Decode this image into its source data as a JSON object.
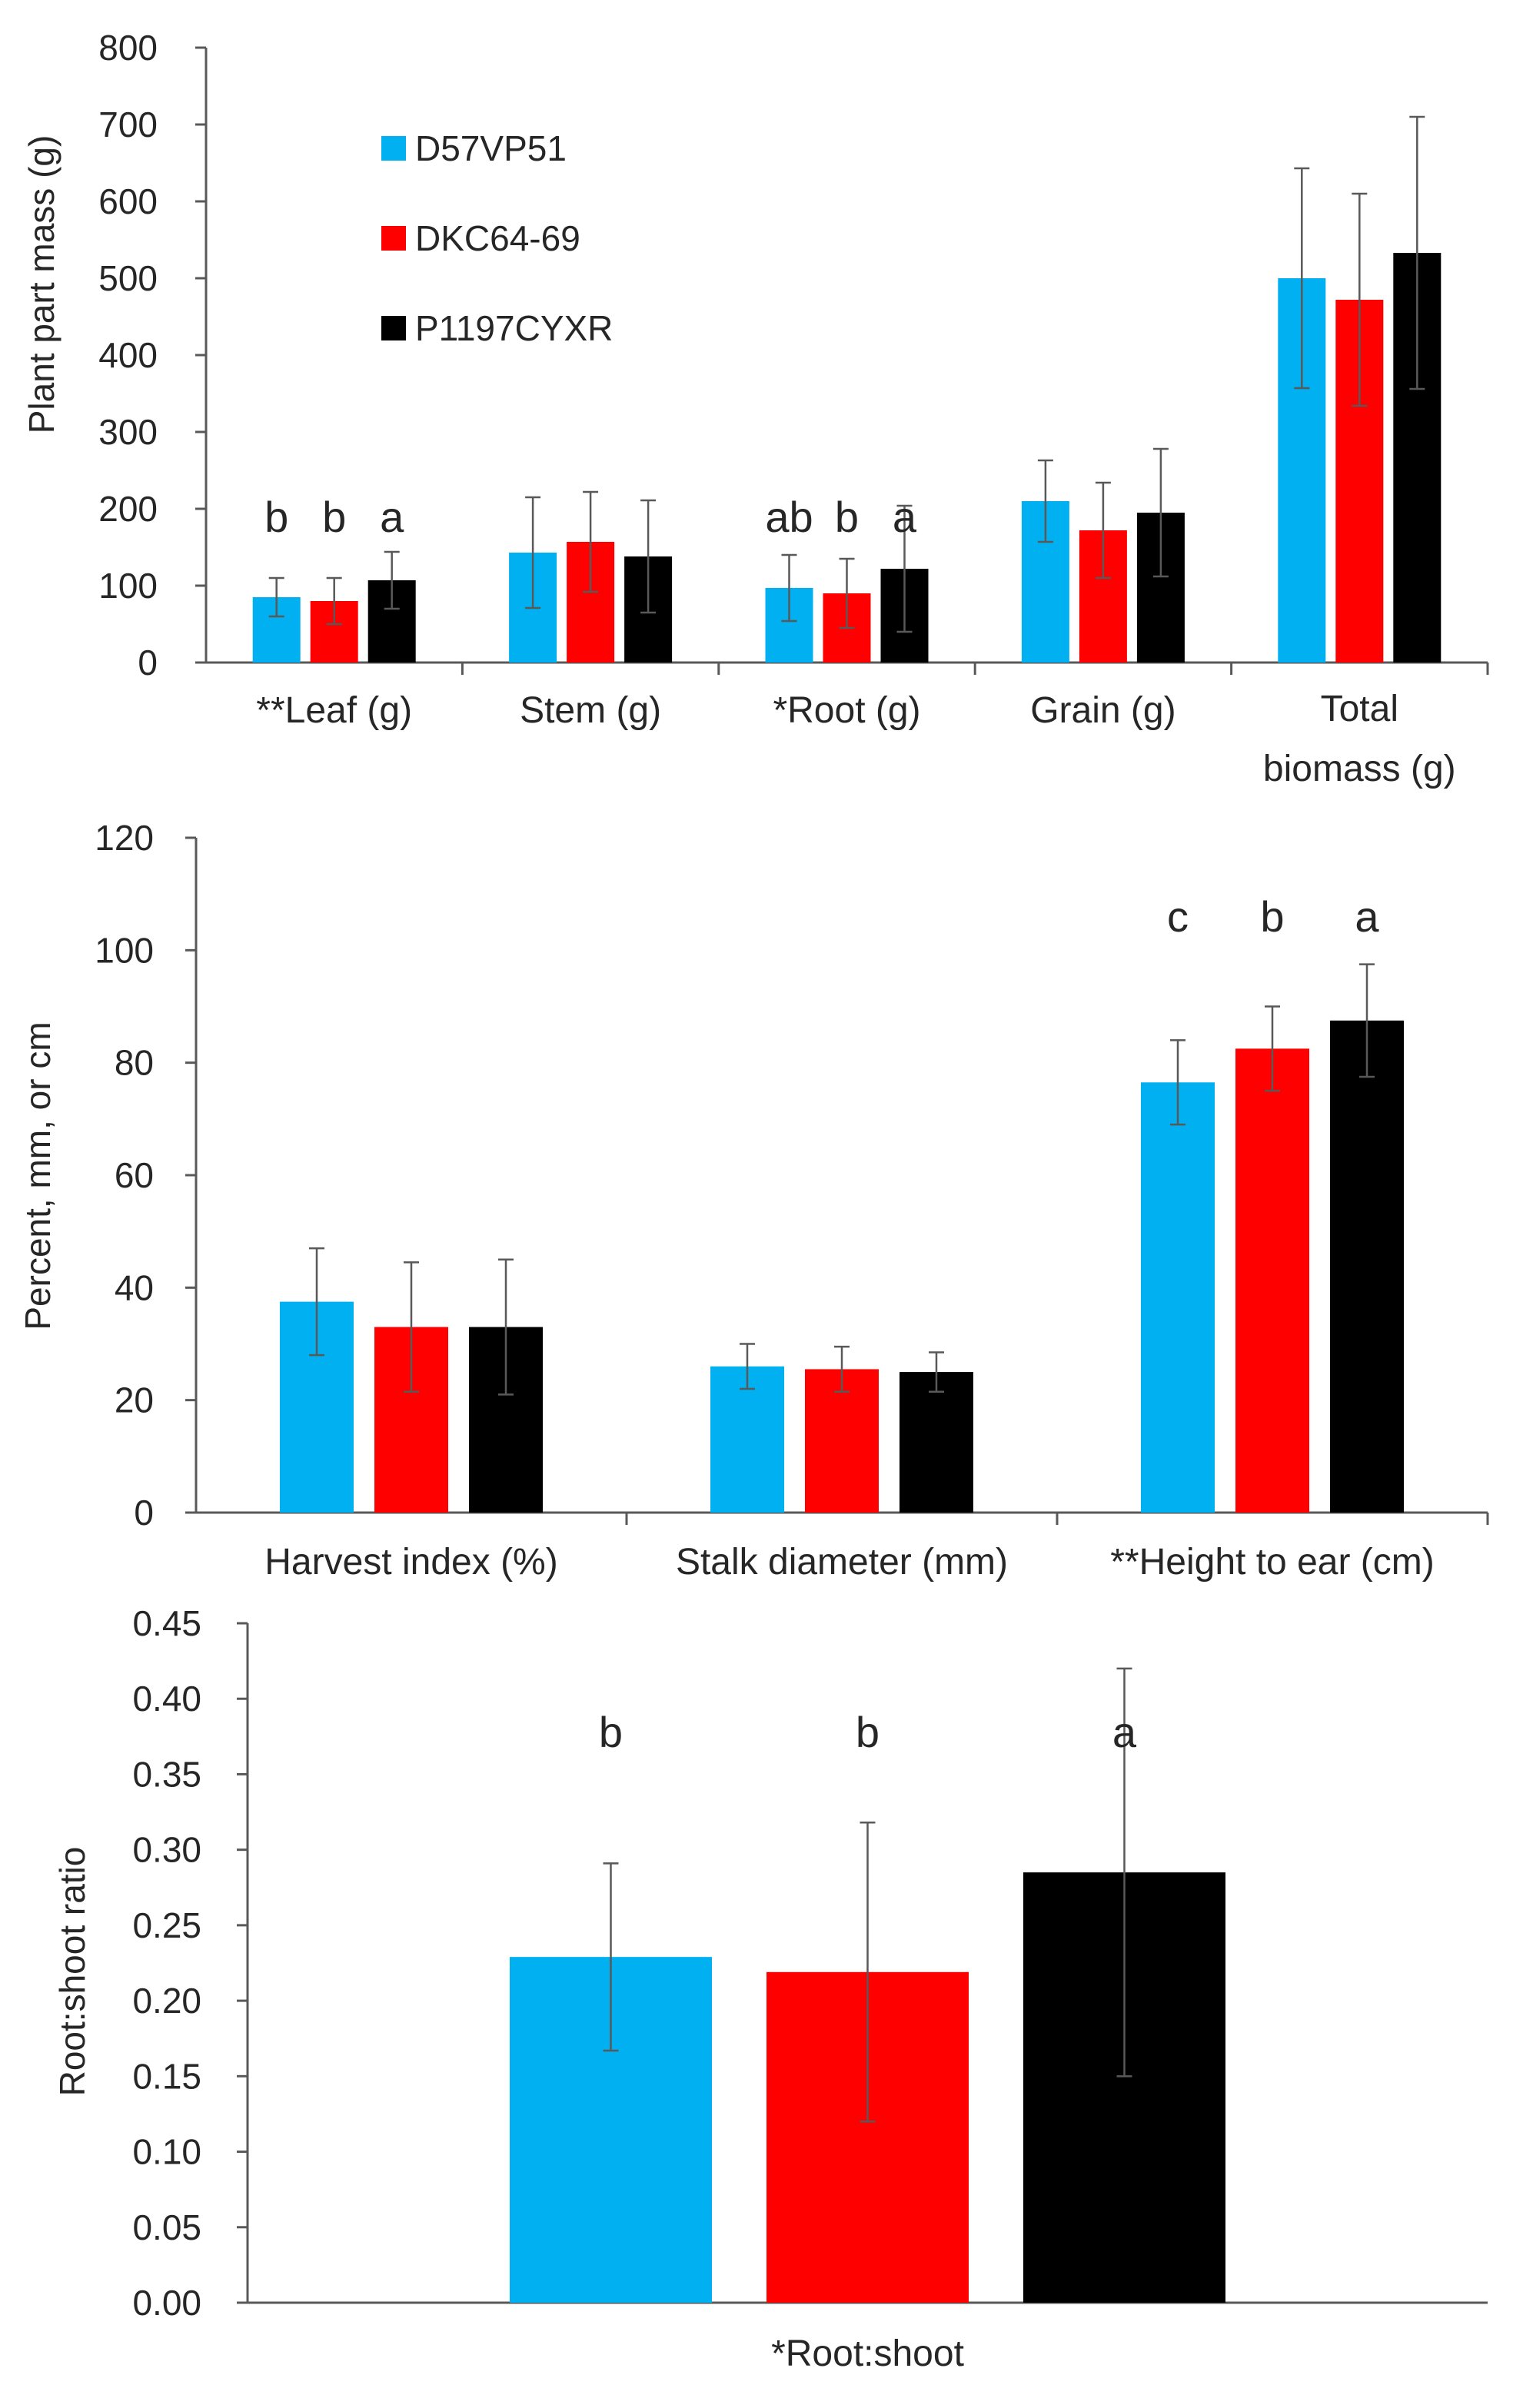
{
  "chart_data": [
    {
      "type": "bar",
      "ylabel": "Plant part mass (g)",
      "ylim": [
        0,
        800
      ],
      "yticks": [
        0,
        100,
        200,
        300,
        400,
        500,
        600,
        700,
        800
      ],
      "categories": [
        "**Leaf (g)",
        "Stem (g)",
        "*Root (g)",
        "Grain (g)",
        "Total biomass (g)"
      ],
      "series": [
        {
          "name": "D57VP51",
          "color": "#00b0f0",
          "values": [
            85,
            143,
            97,
            210,
            500
          ],
          "errors": [
            25,
            72,
            43,
            53,
            143
          ]
        },
        {
          "name": "DKC64-69",
          "color": "#ff0000",
          "values": [
            80,
            157,
            90,
            172,
            472
          ],
          "errors": [
            30,
            65,
            45,
            62,
            138
          ]
        },
        {
          "name": "P1197CYXR",
          "color": "#000000",
          "values": [
            107,
            138,
            122,
            195,
            533
          ],
          "errors": [
            37,
            73,
            82,
            83,
            177
          ]
        }
      ],
      "significance": [
        [
          "b",
          "b",
          "a"
        ],
        [
          "",
          "",
          ""
        ],
        [
          "ab",
          "b",
          "a"
        ],
        [
          "",
          "",
          ""
        ],
        [
          "",
          "",
          ""
        ]
      ],
      "legend": {
        "position": "top-left",
        "entries": [
          "D57VP51",
          "DKC64-69",
          "P1197CYXR"
        ]
      }
    },
    {
      "type": "bar",
      "ylabel": "Percent, mm, or cm",
      "ylim": [
        0,
        120
      ],
      "yticks": [
        0,
        20,
        40,
        60,
        80,
        100,
        120
      ],
      "categories": [
        "Harvest index (%)",
        "Stalk diameter (mm)",
        "**Height to ear (cm)"
      ],
      "series": [
        {
          "name": "D57VP51",
          "color": "#00b0f0",
          "values": [
            37.5,
            26,
            76.5
          ],
          "errors": [
            9.5,
            4,
            7.5
          ]
        },
        {
          "name": "DKC64-69",
          "color": "#ff0000",
          "values": [
            33,
            25.5,
            82.5
          ],
          "errors": [
            11.5,
            4,
            7.5
          ]
        },
        {
          "name": "P1197CYXR",
          "color": "#000000",
          "values": [
            33,
            25,
            87.5
          ],
          "errors": [
            12,
            3.5,
            10
          ]
        }
      ],
      "significance": [
        [
          "",
          "",
          ""
        ],
        [
          "",
          "",
          ""
        ],
        [
          "c",
          "b",
          "a"
        ]
      ]
    },
    {
      "type": "bar",
      "ylabel": "Root:shoot ratio",
      "ylim": [
        0,
        0.45
      ],
      "yticks": [
        "0.00",
        "0.05",
        "0.10",
        "0.15",
        "0.20",
        "0.25",
        "0.30",
        "0.35",
        "0.40",
        "0.45"
      ],
      "categories": [
        "*Root:shoot"
      ],
      "series": [
        {
          "name": "D57VP51",
          "color": "#00b0f0",
          "values": [
            0.229
          ],
          "errors": [
            0.062
          ]
        },
        {
          "name": "DKC64-69",
          "color": "#ff0000",
          "values": [
            0.219
          ],
          "errors": [
            0.099
          ]
        },
        {
          "name": "P1197CYXR",
          "color": "#000000",
          "values": [
            0.285
          ],
          "errors": [
            0.135
          ]
        }
      ],
      "significance": [
        [
          "b",
          "b",
          "a"
        ]
      ]
    }
  ]
}
